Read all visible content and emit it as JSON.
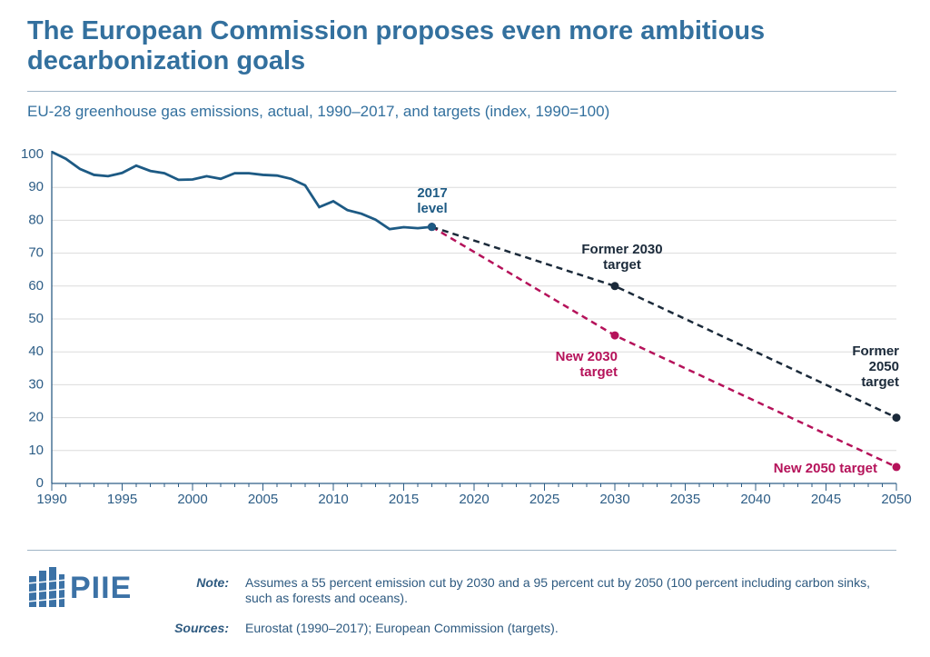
{
  "chart_data": {
    "type": "line",
    "title": "The European Commission proposes even more ambitious decarbonization goals",
    "subtitle": "EU-28 greenhouse gas emissions, actual, 1990–2017, and targets (index, 1990=100)",
    "xlim": [
      1990,
      2050
    ],
    "xticks": [
      1990,
      1995,
      2000,
      2005,
      2010,
      2015,
      2020,
      2025,
      2030,
      2035,
      2040,
      2045,
      2050
    ],
    "xminorticks": [
      1990,
      1991,
      1992,
      1993,
      1994,
      1995,
      1996,
      1997,
      1998,
      1999,
      2000,
      2001,
      2002,
      2003,
      2004,
      2005,
      2006,
      2007,
      2008,
      2009,
      2010,
      2011,
      2012,
      2013,
      2014,
      2015,
      2016,
      2017,
      2018,
      2019,
      2020,
      2021,
      2022,
      2023,
      2024,
      2025,
      2026,
      2027,
      2028,
      2029,
      2030,
      2031,
      2032,
      2033,
      2034,
      2035,
      2036,
      2037,
      2038,
      2039,
      2040,
      2041,
      2042,
      2043,
      2044,
      2045,
      2046,
      2047,
      2048,
      2049,
      2050
    ],
    "ylim": [
      0,
      100
    ],
    "yticks": [
      0,
      10,
      20,
      30,
      40,
      50,
      60,
      70,
      80,
      90,
      100
    ],
    "grid": true,
    "series": [
      {
        "color": "#b5125a",
        "dashed": true,
        "markers": true,
        "x": [
          2017,
          2030,
          2050
        ],
        "values": [
          78,
          45,
          5
        ]
      },
      {
        "color": "#1b2a3a",
        "dashed": true,
        "markers": true,
        "x": [
          2017,
          2030,
          2050
        ],
        "values": [
          78,
          60,
          20
        ]
      },
      {
        "color": "#1d5a84",
        "dashed": false,
        "end_marker": true,
        "x": [
          1990,
          1991,
          1992,
          1993,
          1994,
          1995,
          1996,
          1997,
          1998,
          1999,
          2000,
          2001,
          2002,
          2003,
          2004,
          2005,
          2006,
          2007,
          2008,
          2009,
          2010,
          2011,
          2012,
          2013,
          2014,
          2015,
          2016,
          2017
        ],
        "values": [
          100.8,
          98.7,
          95.6,
          93.8,
          93.4,
          94.4,
          96.6,
          95,
          94.3,
          92.3,
          92.4,
          93.4,
          92.6,
          94.3,
          94.3,
          93.8,
          93.6,
          92.6,
          90.6,
          84,
          85.8,
          83.1,
          82,
          80.2,
          77.3,
          77.9,
          77.6,
          78
        ]
      }
    ],
    "annotations": [
      {
        "text": [
          "2017",
          "level"
        ],
        "color": "#1d5a84"
      },
      {
        "text": [
          "Former 2030",
          "target"
        ],
        "color": "#1b2a3a"
      },
      {
        "text": [
          "Former",
          "2050",
          "target"
        ],
        "color": "#1b2a3a"
      },
      {
        "text": [
          "New 2030",
          "target"
        ],
        "color": "#b5125a"
      },
      {
        "text": [
          "New 2050 target"
        ],
        "color": "#b5125a"
      }
    ],
    "note_label": "Note:",
    "note": "Assumes a 55 percent emission cut by 2030 and a 95 percent cut by 2050 (100 percent including carbon sinks, such as forests and oceans).",
    "sources_label": "Sources:",
    "sources": "Eurostat (1990–2017); European Commission (targets).",
    "logo": "PIIE"
  }
}
